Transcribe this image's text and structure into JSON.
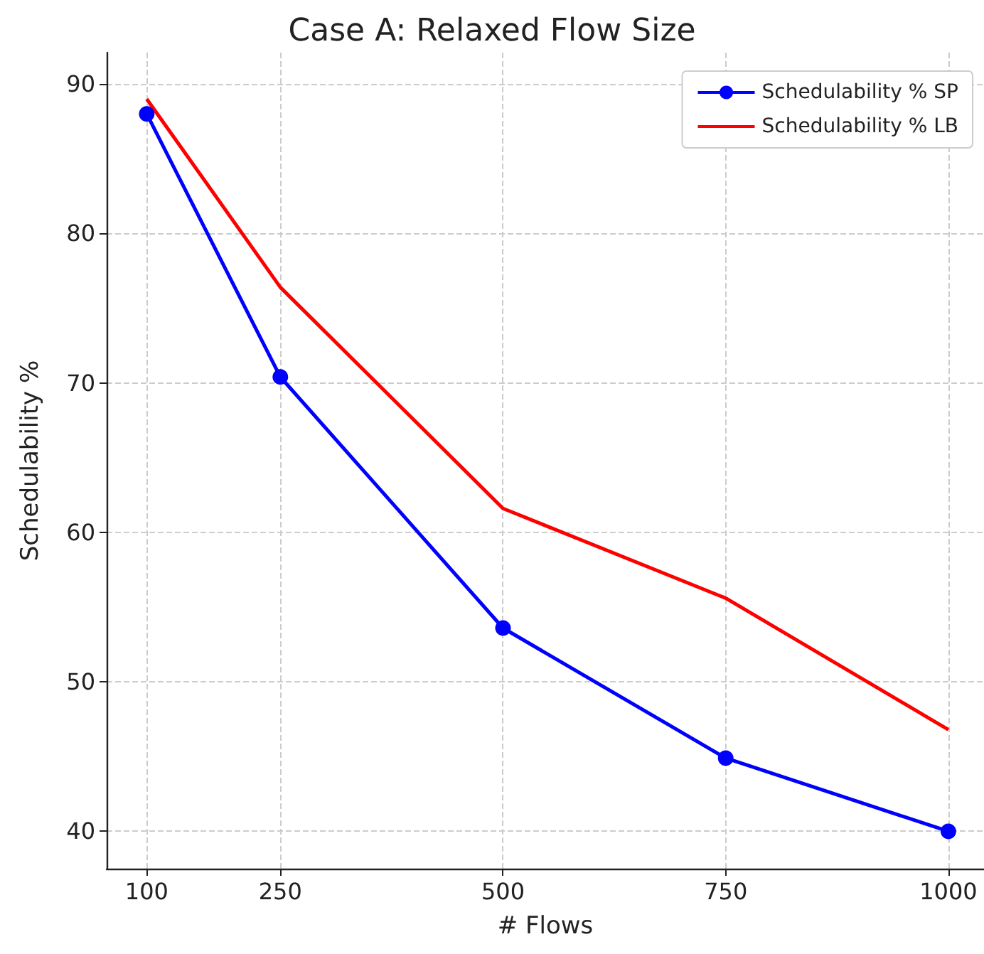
{
  "chart_data": {
    "type": "line",
    "title": "Case A: Relaxed Flow Size",
    "xlabel": "# Flows",
    "ylabel": "Schedulability %",
    "x": [
      100,
      250,
      500,
      750,
      1000
    ],
    "series": [
      {
        "name": "Schedulability % SP",
        "color": "#0000ff",
        "marker": "circle",
        "values": [
          88.0,
          70.4,
          53.6,
          44.9,
          40.0
        ]
      },
      {
        "name": "Schedulability % LB",
        "color": "#ff0000",
        "marker": "none",
        "values": [
          89.0,
          76.4,
          61.6,
          55.6,
          46.8
        ]
      }
    ],
    "xlim": [
      55,
      1040
    ],
    "xticks": [
      100,
      250,
      500,
      750,
      1000
    ],
    "ylim": [
      37.5,
      92.1
    ],
    "yticks": [
      40,
      50,
      60,
      70,
      80,
      90
    ],
    "grid": true,
    "legend": "top right",
    "line_style": "solid"
  }
}
